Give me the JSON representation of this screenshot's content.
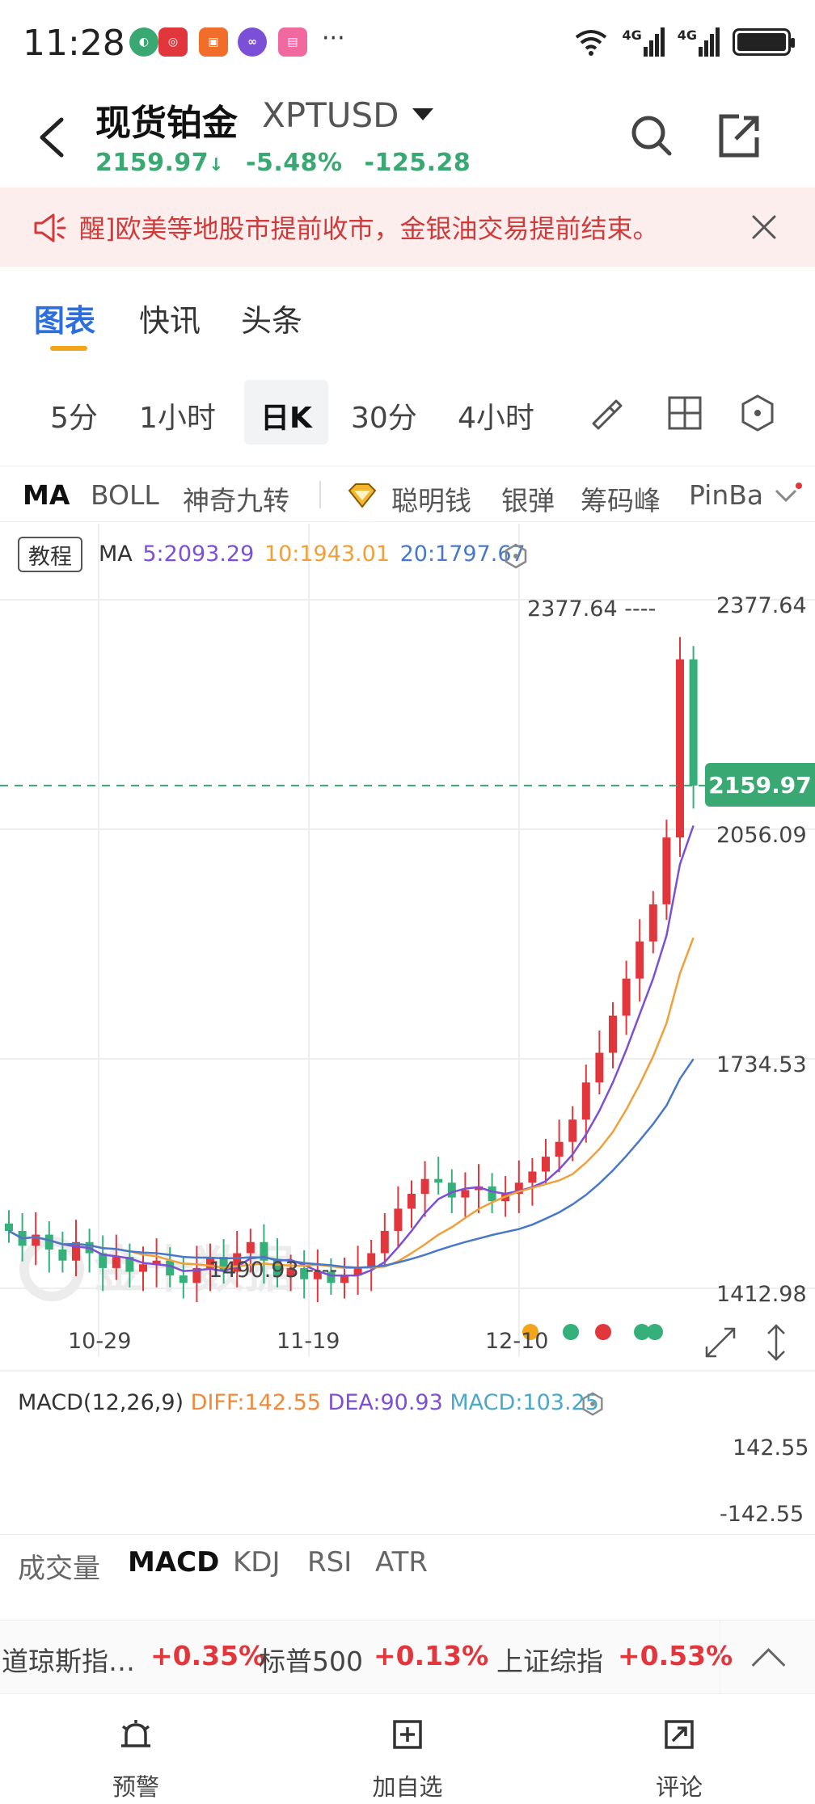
{
  "status_bar": {
    "time": "11:28",
    "more": "···",
    "network1": "4G",
    "network2": "4G"
  },
  "header": {
    "title": "现货铂金",
    "symbol": "XPTUSD",
    "price": "2159.97",
    "arrow": "↓",
    "change_pct": "-5.48%",
    "change_abs": "-125.28",
    "icons": [
      "back-icon",
      "search-icon",
      "share-icon"
    ]
  },
  "notice": {
    "text": "醒]欧美等地股市提前收市，金银油交易提前结束。",
    "icon": "megaphone-icon"
  },
  "main_tabs": [
    {
      "label": "图表",
      "active": true
    },
    {
      "label": "快讯",
      "active": false
    },
    {
      "label": "头条",
      "active": false
    }
  ],
  "periods": [
    {
      "label": "5分",
      "active": false
    },
    {
      "label": "1小时",
      "active": false
    },
    {
      "label": "日K",
      "active": true
    },
    {
      "label": "30分",
      "active": false
    },
    {
      "label": "4小时",
      "active": false
    }
  ],
  "indicators": [
    "MA",
    "BOLL",
    "神奇九转",
    "聪明钱",
    "银弹",
    "筹码峰",
    "PinBa"
  ],
  "chart": {
    "tutorial_label": "教程",
    "ma_prefix": "MA",
    "ma5": "5:2093.29",
    "ma10": "10:1943.01",
    "ma20": "20:1797.67",
    "high_marker": "2377.64 ----",
    "low_marker": "1490.93 ----",
    "watermark": "金十数据",
    "y_labels": [
      "2377.64",
      "2056.09",
      "1734.53",
      "1412.98"
    ],
    "current_price_tag": "2159.97",
    "x_labels": [
      "10-29",
      "11-19",
      "12-10"
    ],
    "macd_title": "MACD(12,26,9)",
    "macd_diff": "DIFF:142.55",
    "macd_dea": "DEA:90.93",
    "macd_val": "MACD:103.25",
    "macd_y_labels": [
      "142.55",
      "-142.55"
    ],
    "colors": {
      "up": "#e0363c",
      "down": "#35b07a",
      "ma5": "#7b4fd6",
      "ma10": "#f0a03a",
      "ma20": "#4a78c8",
      "price_tag": "#3aa873"
    }
  },
  "chart_data": {
    "type": "candlestick",
    "x_labels": [
      "10-29",
      "11-19",
      "12-10"
    ],
    "ylim": [
      1412.98,
      2377.64
    ],
    "last": 2159.97,
    "high": 2377.64,
    "low": 1490.93,
    "ma": {
      "ma5": 2093.29,
      "ma10": 1943.01,
      "ma20": 1797.67
    },
    "macd": {
      "diff": 142.55,
      "dea": 90.93,
      "macd": 103.25
    }
  },
  "sub_tabs": [
    {
      "label": "成交量",
      "active": false
    },
    {
      "label": "MACD",
      "active": true
    },
    {
      "label": "KDJ",
      "active": false
    },
    {
      "label": "RSI",
      "active": false
    },
    {
      "label": "ATR",
      "active": false
    }
  ],
  "ticker": [
    {
      "name": "道琼斯指…",
      "value": "+0.35%"
    },
    {
      "name": "标普500",
      "value": "+0.13%"
    },
    {
      "name": "上证综指",
      "value": "+0.53%"
    }
  ],
  "bottom_nav": [
    {
      "label": "预警",
      "icon": "alarm-icon"
    },
    {
      "label": "加自选",
      "icon": "add-watchlist-icon"
    },
    {
      "label": "评论",
      "icon": "comment-icon"
    }
  ]
}
